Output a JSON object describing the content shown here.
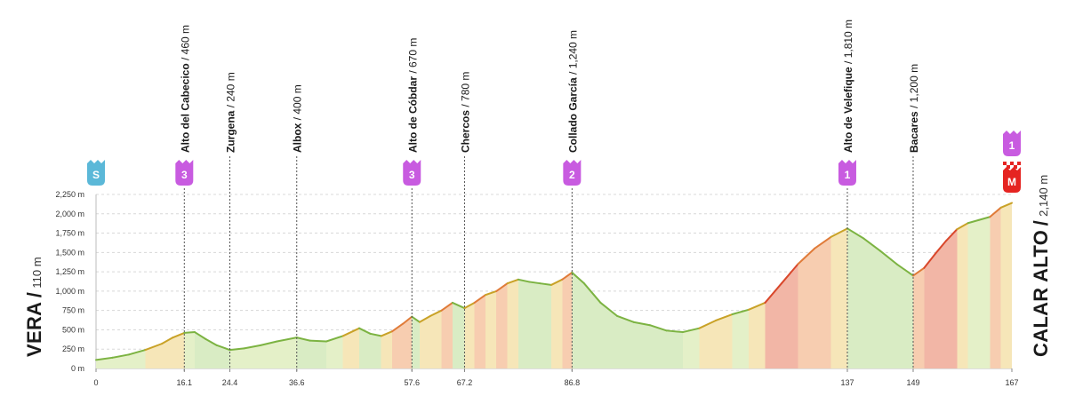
{
  "chart_data": {
    "type": "area",
    "title": "",
    "xlabel": "",
    "ylabel": "",
    "x_unit": "km",
    "y_unit": "m",
    "xlim": [
      0,
      167
    ],
    "ylim": [
      0,
      2250
    ],
    "y_ticks": [
      "0 m",
      "250 m",
      "500 m",
      "750 m",
      "1,000 m",
      "1,250 m",
      "1,500 m",
      "1,750 m",
      "2,000 m",
      "2,250 m"
    ],
    "y_tick_values": [
      0,
      250,
      500,
      750,
      1000,
      1250,
      1500,
      1750,
      2000,
      2250
    ],
    "grid": true,
    "start": {
      "name": "VERA",
      "separator": "/",
      "elevation": "110 m",
      "badge": "S",
      "badge_color": "#5bb8d8"
    },
    "finish": {
      "name": "CALAR ALTO",
      "separator": "/",
      "elevation": "2,140 m",
      "badge": "M",
      "badge_color": "#e52421",
      "category": "1"
    },
    "points": [
      {
        "name": "Alto del Cabecico",
        "elevation": "460 m",
        "km": 16.1,
        "km_label": "16.1",
        "category": "3"
      },
      {
        "name": "Zurgena",
        "elevation": "240 m",
        "km": 24.4,
        "km_label": "24.4",
        "category": ""
      },
      {
        "name": "Albox",
        "elevation": "400 m",
        "km": 36.6,
        "km_label": "36.6",
        "category": ""
      },
      {
        "name": "Alto de Cóbdar",
        "elevation": "670 m",
        "km": 57.6,
        "km_label": "57.6",
        "category": "3"
      },
      {
        "name": "Chercos",
        "elevation": "780 m",
        "km": 67.2,
        "km_label": "67.2",
        "category": ""
      },
      {
        "name": "Collado García",
        "elevation": "1,240 m",
        "km": 86.8,
        "km_label": "86.8",
        "category": "2"
      },
      {
        "name": "Alto de Velefique",
        "elevation": "1,810 m",
        "km": 137,
        "km_label": "137",
        "category": "1"
      },
      {
        "name": "Bacares",
        "elevation": "1,200 m",
        "km": 149,
        "km_label": "149",
        "category": ""
      }
    ],
    "x_tick_labels": [
      {
        "km": 0,
        "label": "0"
      },
      {
        "km": 16.1,
        "label": "16.1"
      },
      {
        "km": 24.4,
        "label": "24.4"
      },
      {
        "km": 36.6,
        "label": "36.6"
      },
      {
        "km": 57.6,
        "label": "57.6"
      },
      {
        "km": 67.2,
        "label": "67.2"
      },
      {
        "km": 86.8,
        "label": "86.8"
      },
      {
        "km": 137,
        "label": "137"
      },
      {
        "km": 149,
        "label": "149"
      },
      {
        "km": 167,
        "label": "167"
      }
    ],
    "series": [
      {
        "x": [
          0,
          3,
          6,
          9,
          12,
          14,
          16.1,
          18,
          20,
          22,
          24.4,
          27,
          30,
          33,
          36.6,
          39,
          42,
          45,
          48,
          50,
          52,
          54,
          56,
          57.6,
          59,
          61,
          63,
          65,
          67.2,
          69,
          71,
          73,
          75,
          77,
          79,
          81,
          83,
          85,
          86.8,
          89,
          92,
          95,
          98,
          101,
          104,
          107,
          110,
          113,
          116,
          119,
          122,
          125,
          128,
          131,
          134,
          137,
          140,
          143,
          146,
          149,
          151,
          153,
          155,
          157,
          159,
          161,
          163,
          165,
          167
        ],
        "y": [
          110,
          140,
          180,
          240,
          320,
          400,
          460,
          470,
          380,
          300,
          240,
          260,
          300,
          350,
          400,
          360,
          350,
          420,
          520,
          450,
          420,
          480,
          580,
          670,
          600,
          680,
          750,
          850,
          780,
          850,
          950,
          1000,
          1100,
          1150,
          1120,
          1100,
          1080,
          1150,
          1240,
          1100,
          850,
          680,
          600,
          560,
          490,
          470,
          520,
          620,
          700,
          760,
          850,
          1100,
          1350,
          1550,
          1700,
          1810,
          1680,
          1520,
          1350,
          1200,
          1300,
          1480,
          1650,
          1800,
          1880,
          1920,
          1960,
          2080,
          2140
        ]
      }
    ]
  }
}
